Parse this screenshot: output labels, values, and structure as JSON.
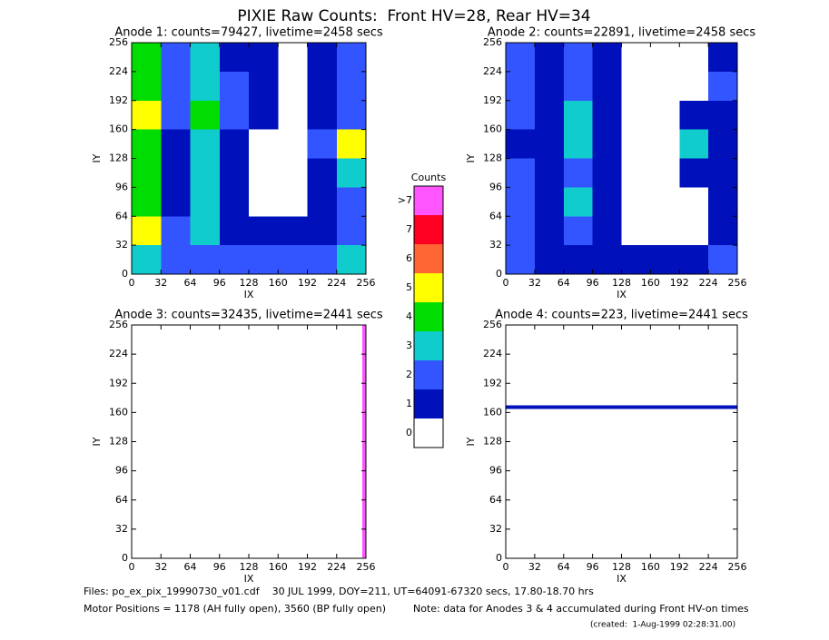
{
  "title": "PIXIE Raw Counts:  Front HV=28, Rear HV=34",
  "chart_data": [
    {
      "type": "heatmap",
      "title": "Anode 1: counts=79427, livetime=2458 secs",
      "xlabel": "IX",
      "ylabel": "IY",
      "xlim": [
        0,
        256
      ],
      "ylim": [
        0,
        256
      ],
      "xticks": [
        0,
        32,
        64,
        96,
        128,
        160,
        192,
        224,
        256
      ],
      "yticks": [
        0,
        32,
        64,
        96,
        128,
        160,
        192,
        224,
        256
      ],
      "z": [
        [
          4,
          2,
          3,
          1,
          1,
          0,
          1,
          2
        ],
        [
          4,
          2,
          3,
          2,
          1,
          0,
          1,
          2
        ],
        [
          5,
          2,
          4,
          2,
          1,
          0,
          1,
          2
        ],
        [
          4,
          1,
          3,
          1,
          0,
          0,
          2,
          5
        ],
        [
          4,
          1,
          3,
          1,
          0,
          0,
          1,
          3
        ],
        [
          4,
          1,
          3,
          1,
          0,
          0,
          1,
          2
        ],
        [
          5,
          2,
          3,
          1,
          1,
          1,
          1,
          2
        ],
        [
          3,
          2,
          2,
          2,
          2,
          2,
          2,
          3
        ]
      ]
    },
    {
      "type": "heatmap",
      "title": "Anode 2: counts=22891, livetime=2458 secs",
      "xlabel": "IX",
      "ylabel": "IY",
      "xlim": [
        0,
        256
      ],
      "ylim": [
        0,
        256
      ],
      "xticks": [
        0,
        32,
        64,
        96,
        128,
        160,
        192,
        224,
        256
      ],
      "yticks": [
        0,
        32,
        64,
        96,
        128,
        160,
        192,
        224,
        256
      ],
      "z": [
        [
          2,
          1,
          2,
          1,
          0,
          0,
          0,
          1
        ],
        [
          2,
          1,
          2,
          1,
          0,
          0,
          0,
          2
        ],
        [
          2,
          1,
          3,
          1,
          0,
          0,
          1,
          1
        ],
        [
          1,
          1,
          3,
          1,
          0,
          0,
          3,
          1
        ],
        [
          2,
          1,
          2,
          1,
          0,
          0,
          1,
          1
        ],
        [
          2,
          1,
          3,
          1,
          0,
          0,
          0,
          1
        ],
        [
          2,
          1,
          2,
          1,
          0,
          0,
          0,
          1
        ],
        [
          2,
          1,
          1,
          1,
          1,
          1,
          1,
          2
        ]
      ]
    },
    {
      "type": "heatmap",
      "title": "Anode 3: counts=32435, livetime=2441 secs",
      "xlabel": "IX",
      "ylabel": "IY",
      "xlim": [
        0,
        256
      ],
      "ylim": [
        0,
        256
      ],
      "xticks": [
        0,
        32,
        64,
        96,
        128,
        160,
        192,
        224,
        256
      ],
      "yticks": [
        0,
        32,
        64,
        96,
        128,
        160,
        192,
        224,
        256
      ],
      "z": [
        [
          0,
          0,
          0,
          0,
          0,
          0,
          0,
          0,
          0,
          0,
          0,
          0,
          0,
          0,
          0,
          0,
          0,
          0,
          0,
          0,
          0,
          0,
          0,
          0,
          0,
          0,
          0,
          0,
          0,
          0,
          0,
          0,
          0,
          0,
          0,
          0,
          0,
          0,
          0,
          0,
          0,
          0,
          0,
          0,
          0,
          0,
          0,
          0,
          0,
          0,
          0,
          0,
          0,
          0,
          0,
          0,
          0,
          0,
          0,
          0,
          0,
          0,
          0,
          8
        ]
      ]
    },
    {
      "type": "heatmap",
      "title": "Anode 4: counts=223, livetime=2441 secs",
      "xlabel": "IX",
      "ylabel": "IY",
      "xlim": [
        0,
        256
      ],
      "ylim": [
        0,
        256
      ],
      "xticks": [
        0,
        32,
        64,
        96,
        128,
        160,
        192,
        224,
        256
      ],
      "yticks": [
        0,
        32,
        64,
        96,
        128,
        160,
        192,
        224,
        256
      ],
      "z": [
        [
          0
        ],
        [
          0
        ],
        [
          0
        ],
        [
          0
        ],
        [
          0
        ],
        [
          0
        ],
        [
          0
        ],
        [
          0
        ],
        [
          0
        ],
        [
          0
        ],
        [
          0
        ],
        [
          0
        ],
        [
          0
        ],
        [
          0
        ],
        [
          0
        ],
        [
          0
        ],
        [
          0
        ],
        [
          0
        ],
        [
          0
        ],
        [
          0
        ],
        [
          0
        ],
        [
          0
        ],
        [
          1
        ],
        [
          0
        ],
        [
          0
        ],
        [
          0
        ],
        [
          0
        ],
        [
          0
        ],
        [
          0
        ],
        [
          0
        ],
        [
          0
        ],
        [
          0
        ],
        [
          0
        ],
        [
          0
        ],
        [
          0
        ],
        [
          0
        ],
        [
          0
        ],
        [
          0
        ],
        [
          0
        ],
        [
          0
        ],
        [
          0
        ],
        [
          0
        ],
        [
          0
        ],
        [
          0
        ],
        [
          0
        ],
        [
          0
        ],
        [
          0
        ],
        [
          0
        ],
        [
          0
        ],
        [
          0
        ],
        [
          0
        ],
        [
          0
        ],
        [
          0
        ],
        [
          0
        ],
        [
          0
        ],
        [
          0
        ],
        [
          0
        ],
        [
          0
        ],
        [
          0
        ],
        [
          0
        ],
        [
          0
        ],
        [
          0
        ],
        [
          0
        ],
        [
          0
        ]
      ]
    },
    {
      "type": "colorbar",
      "title": "Counts",
      "ticks": [
        0,
        1,
        2,
        3,
        4,
        5,
        6,
        7,
        {
          "value": 8,
          "label": ">7"
        }
      ],
      "colors": [
        "#ffffff",
        "#0011bb",
        "#3355ff",
        "#11cccc",
        "#00dd00",
        "#ffff00",
        "#ff6633",
        "#ff0022",
        "#ff55ff"
      ]
    }
  ],
  "footer": {
    "files": "Files: po_ex_pix_19990730_v01.cdf    30 JUL 1999, DOY=211, UT=64091-67320 secs, 17.80-18.70 hrs",
    "motor": "Motor Positions = 1178 (AH fully open), 3560 (BP fully open)",
    "note": "Note: data for Anodes 3 & 4 accumulated during Front HV-on times",
    "created": "(created:  1-Aug-1999 02:28:31.00)"
  }
}
